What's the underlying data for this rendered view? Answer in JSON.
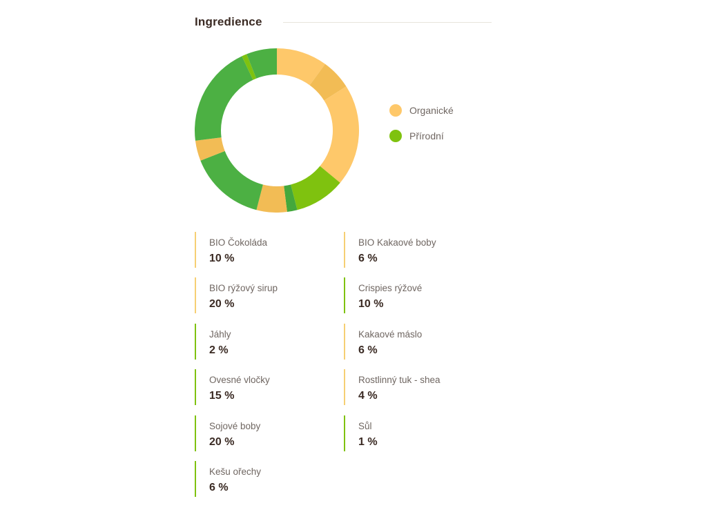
{
  "section": {
    "title": "Ingredience"
  },
  "colors": {
    "organic": "#fec86a",
    "natural": "#7fc20f"
  },
  "legend": [
    {
      "label": "Organické",
      "color": "#fec86a"
    },
    {
      "label": "Přírodní",
      "color": "#7fc20f"
    }
  ],
  "chart_data": {
    "type": "pie",
    "title": "Ingredience",
    "subtype": "donut",
    "legend_position": "right",
    "slices": [
      {
        "label": "BIO Čokoláda",
        "value": 10,
        "value_label": "10 %",
        "category": "Organické",
        "color": "#fec86a"
      },
      {
        "label": "BIO Kakaové boby",
        "value": 6,
        "value_label": "6 %",
        "category": "Organické",
        "color": "#f2bc55"
      },
      {
        "label": "BIO rýžový sirup",
        "value": 20,
        "value_label": "20 %",
        "category": "Organické",
        "color": "#fec86a"
      },
      {
        "label": "Crispies rýžové",
        "value": 10,
        "value_label": "10 %",
        "category": "Přírodní",
        "color": "#7fc20f"
      },
      {
        "label": "Jáhly",
        "value": 2,
        "value_label": "2 %",
        "category": "Přírodní",
        "color": "#44a83c"
      },
      {
        "label": "Kakaové máslo",
        "value": 6,
        "value_label": "6 %",
        "category": "Organické",
        "color": "#f2bc55"
      },
      {
        "label": "Ovesné vločky",
        "value": 15,
        "value_label": "15 %",
        "category": "Přírodní",
        "color": "#4cb043"
      },
      {
        "label": "Rostlinný tuk - shea",
        "value": 4,
        "value_label": "4 %",
        "category": "Organické",
        "color": "#f2bc55"
      },
      {
        "label": "Sojové boby",
        "value": 20,
        "value_label": "20 %",
        "category": "Přírodní",
        "color": "#4cb043"
      },
      {
        "label": "Sůl",
        "value": 1,
        "value_label": "1 %",
        "category": "Přírodní",
        "color": "#7fc20f"
      },
      {
        "label": "Kešu ořechy",
        "value": 6,
        "value_label": "6 %",
        "category": "Přírodní",
        "color": "#4cb043"
      }
    ]
  }
}
